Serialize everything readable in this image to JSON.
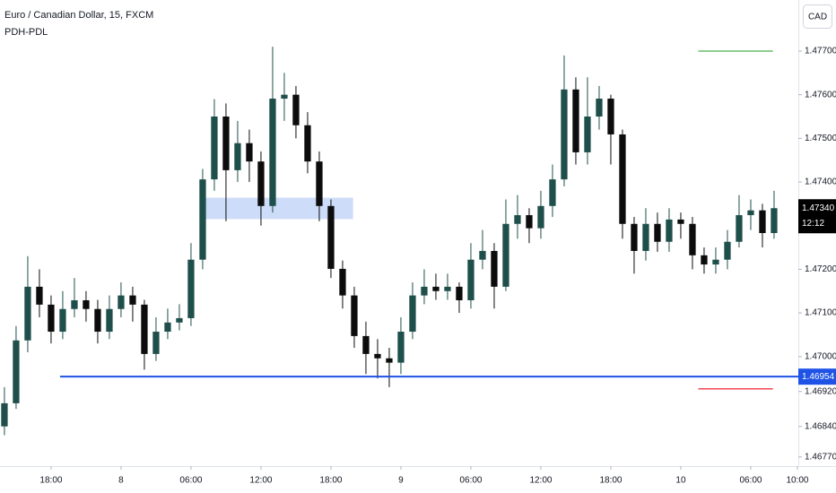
{
  "chart_data": {
    "type": "candlestick",
    "title": "Euro / Canadian Dollar, 15, FXCM",
    "indicator": "PDH-PDL",
    "currency": "CAD",
    "x": [
      -4,
      -3,
      -2,
      -1,
      0,
      1,
      2,
      3,
      4,
      5,
      6,
      7,
      8,
      9,
      10,
      11,
      12,
      13,
      14,
      15,
      16,
      17,
      18,
      19,
      20,
      21,
      22,
      23,
      24,
      25,
      26,
      27,
      28,
      29,
      30,
      31,
      32,
      33,
      34,
      35,
      36,
      37,
      38,
      39,
      40,
      41,
      42,
      43,
      44,
      45,
      46,
      47,
      48,
      49,
      50,
      51,
      52,
      53,
      54,
      55,
      56,
      57,
      58,
      59,
      60,
      61,
      62
    ],
    "open": [
      1.4684,
      1.46893,
      1.47037,
      1.4716,
      1.47119,
      1.47057,
      1.47109,
      1.47129,
      1.47109,
      1.47057,
      1.47109,
      1.4714,
      1.47119,
      1.47006,
      1.47057,
      1.47078,
      1.47088,
      1.47222,
      1.47406,
      1.4755,
      1.47427,
      1.47489,
      1.47447,
      1.47345,
      1.47591,
      1.476,
      1.4753,
      1.47447,
      1.47345,
      1.47201,
      1.4714,
      1.47047,
      1.47006,
      1.46996,
      1.46986,
      1.47057,
      1.4714,
      1.4716,
      1.4715,
      1.4716,
      1.47129,
      1.47222,
      1.47242,
      1.4716,
      1.47304,
      1.47324,
      1.47294,
      1.47345,
      1.47406,
      1.47612,
      1.47468,
      1.4755,
      1.47591,
      1.47509,
      1.47304,
      1.47242,
      1.47304,
      1.47263,
      1.47314,
      1.47304,
      1.47232,
      1.47211,
      1.47222,
      1.47263,
      1.47324,
      1.47335,
      1.47283
    ],
    "high": [
      1.4693,
      1.4707,
      1.4723,
      1.472,
      1.4714,
      1.4715,
      1.4718,
      1.4715,
      1.4713,
      1.4714,
      1.4717,
      1.4716,
      1.4713,
      1.4709,
      1.4711,
      1.4712,
      1.4726,
      1.4743,
      1.4759,
      1.4758,
      1.4754,
      1.4752,
      1.4747,
      1.4771,
      1.4765,
      1.4762,
      1.4756,
      1.4747,
      1.4736,
      1.4722,
      1.4716,
      1.4708,
      1.4704,
      1.4702,
      1.4709,
      1.4717,
      1.472,
      1.4719,
      1.4719,
      1.4717,
      1.4726,
      1.4729,
      1.4726,
      1.4736,
      1.4737,
      1.4734,
      1.4738,
      1.4744,
      1.4769,
      1.4764,
      1.4764,
      1.4762,
      1.476,
      1.4752,
      1.4732,
      1.4734,
      1.4733,
      1.4734,
      1.4733,
      1.4732,
      1.4725,
      1.4725,
      1.4729,
      1.4737,
      1.4736,
      1.4735,
      1.4738
    ],
    "low": [
      1.4682,
      1.4688,
      1.4701,
      1.4709,
      1.4703,
      1.4704,
      1.4709,
      1.4708,
      1.4703,
      1.4704,
      1.4709,
      1.4708,
      1.4697,
      1.4699,
      1.4704,
      1.4706,
      1.4707,
      1.472,
      1.4738,
      1.4731,
      1.474,
      1.474,
      1.473,
      1.4733,
      1.4754,
      1.475,
      1.4742,
      1.4731,
      1.4718,
      1.4711,
      1.4702,
      1.4696,
      1.4695,
      1.4693,
      1.4696,
      1.4704,
      1.4712,
      1.4713,
      1.4713,
      1.471,
      1.4711,
      1.472,
      1.4711,
      1.4715,
      1.4727,
      1.4726,
      1.4727,
      1.4732,
      1.4739,
      1.4744,
      1.4744,
      1.4752,
      1.4744,
      1.4727,
      1.4719,
      1.4722,
      1.4724,
      1.4724,
      1.4727,
      1.472,
      1.4719,
      1.4719,
      1.472,
      1.4725,
      1.4729,
      1.4725,
      1.4727
    ],
    "close": [
      1.46893,
      1.47037,
      1.4716,
      1.47119,
      1.47057,
      1.47109,
      1.47129,
      1.47109,
      1.47057,
      1.47109,
      1.4714,
      1.47119,
      1.47006,
      1.47057,
      1.47078,
      1.47088,
      1.47222,
      1.47406,
      1.4755,
      1.47427,
      1.47489,
      1.47447,
      1.47345,
      1.47591,
      1.476,
      1.4753,
      1.47447,
      1.47345,
      1.47201,
      1.4714,
      1.47047,
      1.47006,
      1.46996,
      1.46986,
      1.47057,
      1.4714,
      1.4716,
      1.4715,
      1.4716,
      1.47129,
      1.47222,
      1.47242,
      1.4716,
      1.47304,
      1.47324,
      1.47294,
      1.47345,
      1.47406,
      1.47612,
      1.47468,
      1.4755,
      1.47591,
      1.47509,
      1.47304,
      1.47242,
      1.47304,
      1.47263,
      1.47314,
      1.47304,
      1.47232,
      1.47211,
      1.47222,
      1.47263,
      1.47324,
      1.47335,
      1.47283,
      1.4734
    ],
    "up_color": "#1f4f4b",
    "down_color": "#0c0c0c",
    "xlim": [
      -4.38,
      64.08
    ],
    "ylim": [
      1.46749,
      1.47817
    ],
    "xticks": [
      {
        "value": 0,
        "label": "18:00"
      },
      {
        "value": 6,
        "label": "8"
      },
      {
        "value": 12,
        "label": "06:00"
      },
      {
        "value": 18,
        "label": "12:00"
      },
      {
        "value": 24,
        "label": "18:00"
      },
      {
        "value": 30,
        "label": "9"
      },
      {
        "value": 36,
        "label": "06:00"
      },
      {
        "value": 42,
        "label": "12:00"
      },
      {
        "value": 48,
        "label": "18:00"
      },
      {
        "value": 54,
        "label": "10"
      },
      {
        "value": 60,
        "label": "06:00"
      },
      {
        "value": 64,
        "label": "10:00"
      }
    ],
    "yticks": [
      {
        "value": 1.477,
        "label": "1.47700"
      },
      {
        "value": 1.476,
        "label": "1.47600"
      },
      {
        "value": 1.475,
        "label": "1.47500"
      },
      {
        "value": 1.474,
        "label": "1.47400"
      },
      {
        "value": 1.472,
        "label": "1.47200"
      },
      {
        "value": 1.471,
        "label": "1.47100"
      },
      {
        "value": 1.47,
        "label": "1.47000"
      },
      {
        "value": 1.4692,
        "label": "1.46920"
      },
      {
        "value": 1.4684,
        "label": "1.46840"
      },
      {
        "value": 1.4677,
        "label": "1.46770"
      }
    ],
    "last_price": {
      "value": 1.4734,
      "label": "1.47340"
    },
    "countdown": "12:12",
    "level": {
      "value": 1.46954,
      "label": "1.46954",
      "start": 0.77,
      "color": "#1e53e5"
    },
    "pdh": {
      "value": 1.477,
      "start": 55.5,
      "end": 61.9,
      "color": "#4caf50"
    },
    "pdl": {
      "value": 1.46926,
      "start": 55.5,
      "end": 61.9,
      "color": "#f23645"
    },
    "zone": {
      "x": [
        12.77,
        25.9
      ],
      "y": [
        1.47315,
        1.47364
      ],
      "color": "#bcd0f7"
    }
  }
}
